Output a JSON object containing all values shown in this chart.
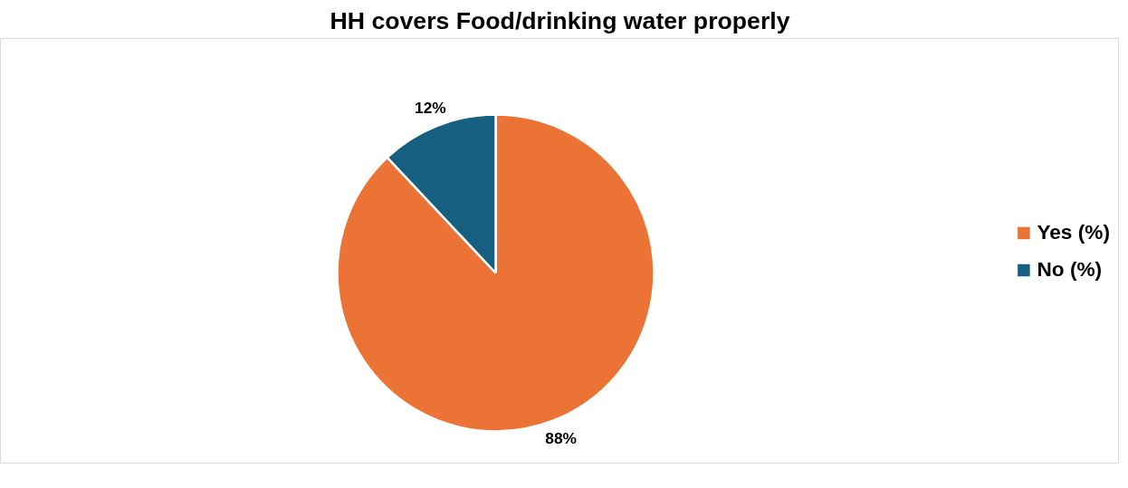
{
  "chart_data": {
    "type": "pie",
    "title": "HH covers Food/drinking water properly",
    "categories": [
      "Yes (%)",
      "No (%)"
    ],
    "values": [
      88,
      12
    ],
    "colors": [
      "#eb7335",
      "#175f80"
    ],
    "value_labels": [
      "88%",
      "12%"
    ],
    "legend": "right"
  }
}
